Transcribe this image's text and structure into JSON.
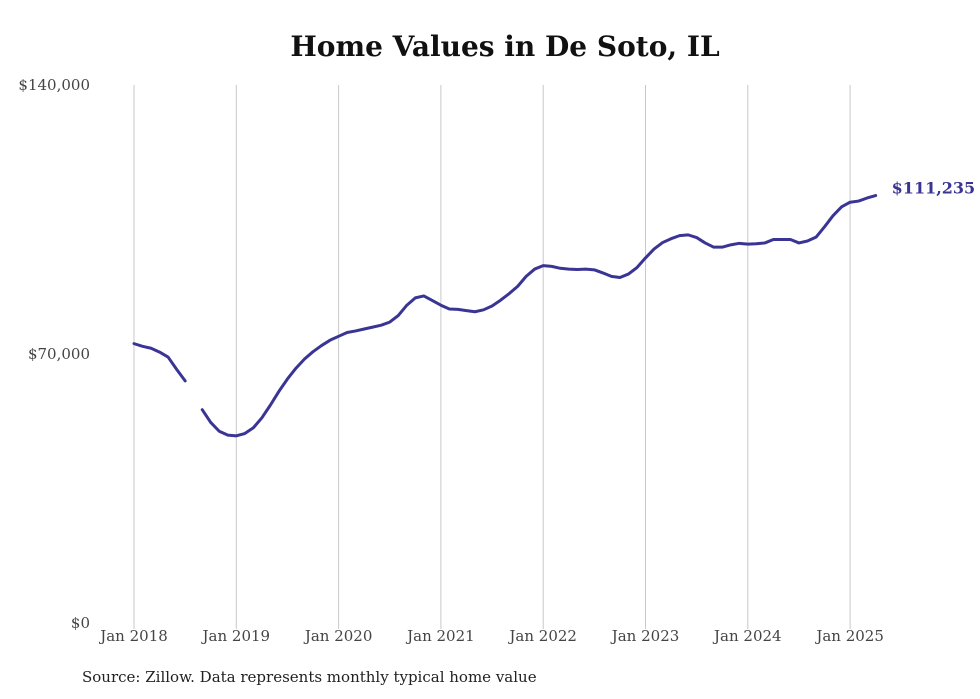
{
  "chart_data": {
    "type": "line",
    "title": "Home Values in De Soto, IL",
    "source": "Source: Zillow. Data represents monthly typical home value",
    "xlabel": "",
    "ylabel": "",
    "ylim": [
      0,
      140000
    ],
    "yticks": [
      {
        "value": 0,
        "label": "$0"
      },
      {
        "value": 70000,
        "label": "$70,000"
      },
      {
        "value": 140000,
        "label": "$140,000"
      }
    ],
    "xticks": [
      {
        "value": 2018,
        "label": "Jan 2018"
      },
      {
        "value": 2019,
        "label": "Jan 2019"
      },
      {
        "value": 2020,
        "label": "Jan 2020"
      },
      {
        "value": 2021,
        "label": "Jan 2021"
      },
      {
        "value": 2022,
        "label": "Jan 2022"
      },
      {
        "value": 2023,
        "label": "Jan 2023"
      },
      {
        "value": 2024,
        "label": "Jan 2024"
      },
      {
        "value": 2025,
        "label": "Jan 2025"
      }
    ],
    "xlim": [
      2018,
      2025.33
    ],
    "vertical_grid": true,
    "horizontal_grid": false,
    "line_color": "#3a3494",
    "end_label": "$111,235",
    "series": [
      {
        "segments": [
          [
            [
              2018.0,
              72700
            ],
            [
              2018.083,
              72000
            ],
            [
              2018.167,
              71500
            ],
            [
              2018.25,
              70500
            ],
            [
              2018.333,
              69200
            ],
            [
              2018.417,
              66000
            ],
            [
              2018.5,
              63000
            ]
          ],
          [
            [
              2018.667,
              55500
            ],
            [
              2018.75,
              52200
            ],
            [
              2018.833,
              49900
            ],
            [
              2018.917,
              48900
            ],
            [
              2019.0,
              48700
            ],
            [
              2019.083,
              49300
            ],
            [
              2019.167,
              50800
            ],
            [
              2019.25,
              53400
            ],
            [
              2019.333,
              56700
            ],
            [
              2019.417,
              60300
            ],
            [
              2019.5,
              63500
            ],
            [
              2019.583,
              66300
            ],
            [
              2019.667,
              68700
            ],
            [
              2019.75,
              70600
            ],
            [
              2019.833,
              72200
            ],
            [
              2019.917,
              73600
            ],
            [
              2020.0,
              74600
            ],
            [
              2020.083,
              75600
            ],
            [
              2020.167,
              76000
            ],
            [
              2020.25,
              76500
            ],
            [
              2020.333,
              77000
            ],
            [
              2020.417,
              77500
            ],
            [
              2020.5,
              78300
            ],
            [
              2020.583,
              80000
            ],
            [
              2020.667,
              82700
            ],
            [
              2020.75,
              84600
            ],
            [
              2020.833,
              85100
            ],
            [
              2020.917,
              83900
            ],
            [
              2021.0,
              82700
            ],
            [
              2021.083,
              81700
            ],
            [
              2021.167,
              81600
            ],
            [
              2021.25,
              81300
            ],
            [
              2021.333,
              81000
            ],
            [
              2021.417,
              81500
            ],
            [
              2021.5,
              82500
            ],
            [
              2021.583,
              84000
            ],
            [
              2021.667,
              85700
            ],
            [
              2021.75,
              87600
            ],
            [
              2021.833,
              90200
            ],
            [
              2021.917,
              92100
            ],
            [
              2022.0,
              93000
            ],
            [
              2022.083,
              92800
            ],
            [
              2022.167,
              92300
            ],
            [
              2022.25,
              92100
            ],
            [
              2022.333,
              92000
            ],
            [
              2022.417,
              92100
            ],
            [
              2022.5,
              91900
            ],
            [
              2022.583,
              91100
            ],
            [
              2022.667,
              90200
            ],
            [
              2022.75,
              89900
            ],
            [
              2022.833,
              90800
            ],
            [
              2022.917,
              92500
            ],
            [
              2023.0,
              95000
            ],
            [
              2023.083,
              97300
            ],
            [
              2023.167,
              99000
            ],
            [
              2023.25,
              100000
            ],
            [
              2023.333,
              100800
            ],
            [
              2023.417,
              101000
            ],
            [
              2023.5,
              100300
            ],
            [
              2023.583,
              98900
            ],
            [
              2023.667,
              97800
            ],
            [
              2023.75,
              97800
            ],
            [
              2023.833,
              98400
            ],
            [
              2023.917,
              98800
            ],
            [
              2024.0,
              98600
            ],
            [
              2024.083,
              98700
            ],
            [
              2024.167,
              98900
            ],
            [
              2024.25,
              99800
            ],
            [
              2024.333,
              99800
            ],
            [
              2024.417,
              99800
            ],
            [
              2024.5,
              98900
            ],
            [
              2024.583,
              99400
            ],
            [
              2024.667,
              100400
            ],
            [
              2024.75,
              103100
            ],
            [
              2024.833,
              106000
            ],
            [
              2024.917,
              108300
            ],
            [
              2025.0,
              109500
            ],
            [
              2025.083,
              109800
            ],
            [
              2025.167,
              110600
            ],
            [
              2025.25,
              111235
            ]
          ]
        ]
      }
    ]
  }
}
